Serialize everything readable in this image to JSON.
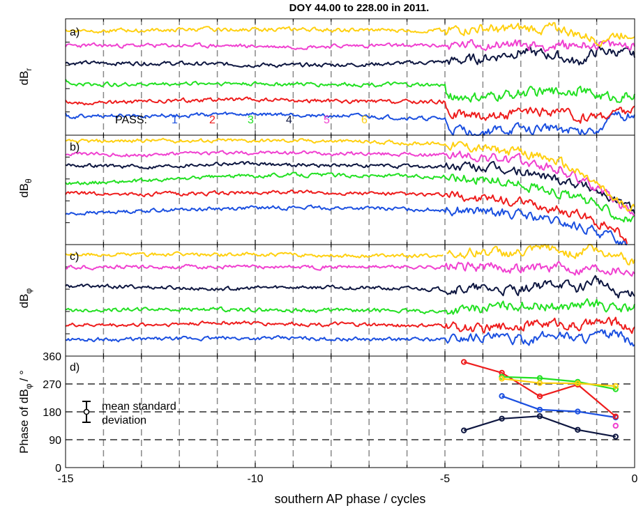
{
  "figure": {
    "title": "DOY 44.00 to 228.00 in 2011.",
    "xlabel": "southern AP phase / cycles",
    "x_ticks": [
      "-15",
      "-10",
      "-5",
      "0"
    ]
  },
  "colors": {
    "pass1": "#1a4fe0",
    "pass2": "#ee1c1c",
    "pass3": "#22e022",
    "pass4": "#0d1640",
    "pass5": "#f040d0",
    "pass6": "#ffd010",
    "grid": "#888888"
  },
  "chart_data": [
    {
      "type": "line",
      "panel_label": "a)",
      "ylabel": "dB",
      "ylabel_sub": "r",
      "xlim": [
        -15,
        0
      ],
      "x_gridlines": [
        -14,
        -13,
        -12,
        -11,
        -10,
        -9,
        -8,
        -7,
        -6,
        -5,
        -4,
        -3,
        -2,
        -1
      ],
      "legend": {
        "title": "PASS:",
        "entries": [
          "1",
          "2",
          "3",
          "4",
          "5",
          "6"
        ]
      },
      "series": [
        {
          "name": "1",
          "color_key": "pass1",
          "x": [
            -15,
            -13,
            -11,
            -9,
            -7,
            -5,
            -4,
            -3,
            -2,
            -1.5,
            -1,
            -0.5,
            0
          ],
          "y": [
            0.22,
            0.23,
            0.24,
            0.24,
            0.22,
            0.2,
            0.18,
            0.2,
            0.22,
            0.18,
            0.22,
            0.3,
            0.35
          ]
        },
        {
          "name": "2",
          "color_key": "pass2",
          "x": [
            -15,
            -13,
            -11,
            -9,
            -7,
            -5,
            -4,
            -3,
            -2,
            -1.5,
            -1,
            -0.5,
            0
          ],
          "y": [
            0.34,
            0.35,
            0.37,
            0.36,
            0.35,
            0.35,
            0.32,
            0.34,
            0.36,
            0.3,
            0.32,
            0.35,
            0.38
          ]
        },
        {
          "name": "3",
          "color_key": "pass3",
          "x": [
            -15,
            -13,
            -11,
            -9,
            -7,
            -5,
            -4,
            -3,
            -2,
            -1.5,
            -1,
            -0.5,
            0
          ],
          "y": [
            0.5,
            0.5,
            0.51,
            0.5,
            0.5,
            0.49,
            0.47,
            0.52,
            0.53,
            0.55,
            0.5,
            0.48,
            0.5
          ]
        },
        {
          "name": "4",
          "color_key": "pass4",
          "x": [
            -15,
            -13,
            -11,
            -9,
            -7,
            -5,
            -4,
            -3,
            -2,
            -1.5,
            -1,
            -0.5,
            0
          ],
          "y": [
            0.62,
            0.62,
            0.61,
            0.6,
            0.61,
            0.63,
            0.66,
            0.72,
            0.68,
            0.62,
            0.72,
            0.72,
            0.68
          ]
        },
        {
          "name": "5",
          "color_key": "pass5",
          "x": [
            -15,
            -13,
            -11,
            -9,
            -7,
            -5,
            -4,
            -3,
            -2,
            -1.5,
            -1,
            -0.5,
            0
          ],
          "y": [
            0.77,
            0.77,
            0.77,
            0.76,
            0.77,
            0.77,
            0.78,
            0.78,
            0.76,
            0.78,
            0.78,
            0.77,
            0.78
          ]
        },
        {
          "name": "6",
          "color_key": "pass6",
          "x": [
            -15,
            -13,
            -11,
            -9,
            -7,
            -5,
            -4,
            -3,
            -2,
            -1.5,
            -1,
            -0.5,
            0
          ],
          "y": [
            0.9,
            0.9,
            0.91,
            0.91,
            0.9,
            0.9,
            0.91,
            0.91,
            0.92,
            0.86,
            0.82,
            0.86,
            0.88
          ]
        }
      ]
    },
    {
      "type": "line",
      "panel_label": "b)",
      "ylabel": "dB",
      "ylabel_sub": "θ",
      "xlim": [
        -15,
        0
      ],
      "x_gridlines": [
        -14,
        -13,
        -12,
        -11,
        -10,
        -9,
        -8,
        -7,
        -6,
        -5,
        -4,
        -3,
        -2,
        -1
      ],
      "series": [
        {
          "name": "1",
          "color_key": "pass1",
          "x": [
            -15,
            -13,
            -11,
            -9,
            -7,
            -5,
            -4,
            -3,
            -2,
            -1.5,
            -1,
            -0.5,
            -0.2
          ],
          "y": [
            0.28,
            0.31,
            0.33,
            0.34,
            0.33,
            0.32,
            0.3,
            0.27,
            0.2,
            0.16,
            0.12,
            0.05,
            0.0
          ]
        },
        {
          "name": "2",
          "color_key": "pass2",
          "x": [
            -15,
            -13,
            -11,
            -9,
            -7,
            -5,
            -4,
            -3,
            -2,
            -1.5,
            -1,
            -0.5,
            -0.2
          ],
          "y": [
            0.47,
            0.46,
            0.47,
            0.48,
            0.47,
            0.45,
            0.42,
            0.38,
            0.32,
            0.28,
            0.2,
            0.15,
            0.0
          ]
        },
        {
          "name": "3",
          "color_key": "pass3",
          "x": [
            -15,
            -13,
            -11,
            -9,
            -7,
            -5,
            -4,
            -3,
            -2,
            -1.5,
            -1,
            -0.5,
            0
          ],
          "y": [
            0.56,
            0.58,
            0.62,
            0.64,
            0.63,
            0.62,
            0.6,
            0.55,
            0.48,
            0.42,
            0.36,
            0.28,
            0.22
          ]
        },
        {
          "name": "4",
          "color_key": "pass4",
          "x": [
            -15,
            -13,
            -11,
            -9,
            -7,
            -5,
            -4,
            -3,
            -2,
            -1.5,
            -1,
            -0.5,
            0
          ],
          "y": [
            0.73,
            0.71,
            0.74,
            0.73,
            0.72,
            0.71,
            0.7,
            0.66,
            0.6,
            0.56,
            0.5,
            0.4,
            0.32
          ]
        },
        {
          "name": "5",
          "color_key": "pass5",
          "x": [
            -15,
            -13,
            -11,
            -9,
            -7,
            -5,
            -4,
            -3,
            -2,
            -1.5,
            -1,
            -0.5,
            0
          ],
          "y": [
            0.83,
            0.82,
            0.84,
            0.84,
            0.83,
            0.82,
            0.8,
            0.76,
            0.68,
            0.6,
            0.52,
            0.38,
            0.3
          ]
        },
        {
          "name": "6",
          "color_key": "pass6",
          "x": [
            -15,
            -13,
            -11,
            -9,
            -7,
            -5,
            -4,
            -3,
            -2,
            -1.5,
            -1,
            -0.5,
            0
          ],
          "y": [
            0.94,
            0.95,
            0.95,
            0.95,
            0.94,
            0.92,
            0.88,
            0.84,
            0.76,
            0.66,
            0.55,
            0.4,
            0.34
          ]
        }
      ]
    },
    {
      "type": "line",
      "panel_label": "c)",
      "ylabel": "dB",
      "ylabel_sub": "φ",
      "xlim": [
        -15,
        0
      ],
      "x_gridlines": [
        -14,
        -13,
        -12,
        -11,
        -10,
        -9,
        -8,
        -7,
        -6,
        -5,
        -4,
        -3,
        -2,
        -1
      ],
      "series": [
        {
          "name": "1",
          "color_key": "pass1",
          "x": [
            -15,
            -13,
            -11,
            -9,
            -7,
            -5,
            -4,
            -3,
            -2,
            -1.5,
            -1,
            -0.5,
            0
          ],
          "y": [
            0.15,
            0.15,
            0.16,
            0.16,
            0.15,
            0.15,
            0.18,
            0.14,
            0.2,
            0.16,
            0.18,
            0.2,
            0.1
          ]
        },
        {
          "name": "2",
          "color_key": "pass2",
          "x": [
            -15,
            -13,
            -11,
            -9,
            -7,
            -5,
            -4,
            -3,
            -2,
            -1.5,
            -1,
            -0.5,
            0
          ],
          "y": [
            0.28,
            0.28,
            0.3,
            0.29,
            0.28,
            0.27,
            0.24,
            0.28,
            0.3,
            0.26,
            0.3,
            0.3,
            0.24
          ]
        },
        {
          "name": "3",
          "color_key": "pass3",
          "x": [
            -15,
            -13,
            -11,
            -9,
            -7,
            -5,
            -4,
            -3,
            -2,
            -1.5,
            -1,
            -0.5,
            0
          ],
          "y": [
            0.41,
            0.42,
            0.42,
            0.41,
            0.41,
            0.4,
            0.43,
            0.46,
            0.44,
            0.45,
            0.47,
            0.42,
            0.44
          ]
        },
        {
          "name": "4",
          "color_key": "pass4",
          "x": [
            -15,
            -13,
            -11,
            -9,
            -7,
            -5,
            -4,
            -3,
            -2,
            -1.5,
            -1,
            -0.5,
            0
          ],
          "y": [
            0.63,
            0.62,
            0.6,
            0.62,
            0.61,
            0.6,
            0.6,
            0.6,
            0.66,
            0.6,
            0.7,
            0.55,
            0.58
          ]
        },
        {
          "name": "5",
          "color_key": "pass5",
          "x": [
            -15,
            -13,
            -11,
            -9,
            -7,
            -5,
            -4,
            -3,
            -2,
            -1.5,
            -1,
            -0.5,
            0
          ],
          "y": [
            0.8,
            0.8,
            0.8,
            0.8,
            0.8,
            0.8,
            0.8,
            0.79,
            0.8,
            0.78,
            0.8,
            0.78,
            0.76
          ]
        },
        {
          "name": "6",
          "color_key": "pass6",
          "x": [
            -15,
            -13,
            -11,
            -9,
            -7,
            -5.05
          ],
          "y": [
            0.91,
            0.91,
            0.91,
            0.91,
            0.9,
            0.9
          ]
        },
        {
          "name": "6",
          "color_key": "pass6",
          "x": [
            -4.95,
            -4,
            -3,
            -2.3,
            -2,
            -1.5,
            -1.2,
            -0.8,
            -0.5,
            0
          ],
          "y": [
            0.91,
            0.94,
            0.92,
            0.98,
            0.94,
            0.92,
            1.0,
            0.9,
            0.94,
            0.84
          ]
        }
      ]
    },
    {
      "type": "line",
      "panel_label": "d)",
      "ylabel": "Phase of dB",
      "ylabel_sub": "φ",
      "ylabel_unit": "/ °",
      "ylim": [
        0,
        360
      ],
      "y_ticks": [
        "0",
        "90",
        "180",
        "270",
        "360"
      ],
      "xlim": [
        -15,
        0
      ],
      "x_gridlines": [
        -14,
        -13,
        -12,
        -11,
        -10,
        -9,
        -8,
        -7,
        -6,
        -5,
        -4,
        -3,
        -2,
        -1
      ],
      "y_reference_lines": [
        90,
        180,
        270
      ],
      "annotation": {
        "line1": "mean standard",
        "line2": "deviation"
      },
      "series": [
        {
          "name": "1",
          "color_key": "pass1",
          "x": [
            -3.5,
            -2.5,
            -1.5,
            -0.5
          ],
          "y": [
            231,
            187,
            181,
            162
          ]
        },
        {
          "name": "2",
          "color_key": "pass2",
          "x": [
            -4.5,
            -3.5,
            -2.5,
            -1.5,
            -0.5
          ],
          "y": [
            341,
            306,
            230,
            268,
            165
          ]
        },
        {
          "name": "3",
          "color_key": "pass3",
          "x": [
            -3.5,
            -2.5,
            -1.5,
            -0.5
          ],
          "y": [
            293,
            289,
            277,
            253
          ]
        },
        {
          "name": "4",
          "color_key": "pass4",
          "x": [
            -4.5,
            -3.5,
            -2.5,
            -1.5,
            -0.5
          ],
          "y": [
            120,
            158,
            166,
            122,
            100
          ]
        },
        {
          "name": "5",
          "color_key": "pass5",
          "x": [
            -0.5
          ],
          "y": [
            135
          ]
        },
        {
          "name": "6",
          "color_key": "pass6",
          "x": [
            -3.5,
            -2.5,
            -1.5,
            -0.5
          ],
          "y": [
            287,
            273,
            272,
            263
          ]
        }
      ]
    }
  ]
}
